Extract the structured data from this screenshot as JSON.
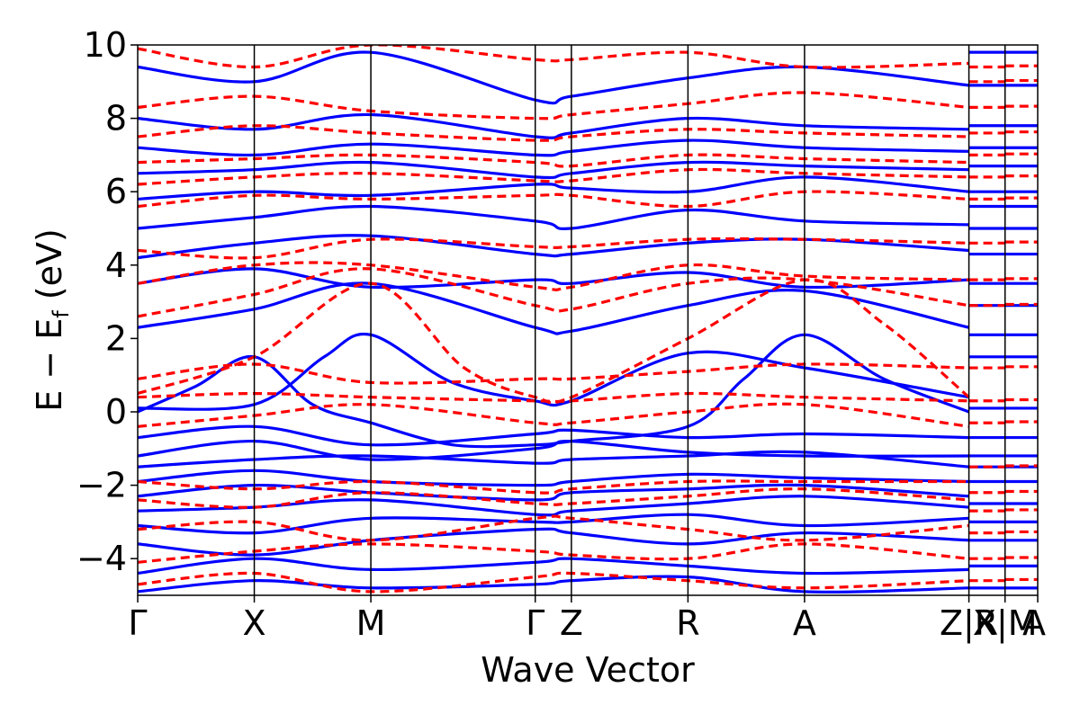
{
  "chart_data": {
    "type": "line",
    "title": "",
    "xlabel": "Wave Vector",
    "ylabel_main": "E − E",
    "ylabel_sub": "f",
    "ylabel_unit": " (eV)",
    "ylim": [
      -5,
      10
    ],
    "yticks": [
      -4,
      -2,
      0,
      2,
      4,
      6,
      8,
      10
    ],
    "ytick_labels": [
      "−4",
      "−2",
      "0",
      "2",
      "4",
      "6",
      "8",
      "10"
    ],
    "xlim": [
      0,
      7.72
    ],
    "kpoints": [
      {
        "label": "Γ",
        "x": 0
      },
      {
        "label": "X",
        "x": 1.0
      },
      {
        "label": "M",
        "x": 2.0
      },
      {
        "label": "Γ",
        "x": 3.41
      },
      {
        "label": "Z",
        "x": 3.72
      },
      {
        "label": "R",
        "x": 4.72
      },
      {
        "label": "A",
        "x": 5.72
      },
      {
        "label": "Z|R",
        "x": 7.13
      },
      {
        "label": "X|M",
        "x": 7.44
      },
      {
        "label": "A",
        "x": 7.72
      }
    ],
    "grid": false,
    "series": [
      {
        "style": "solid",
        "color": "#0000ff",
        "bands": [
          {
            "x": [
              0,
              1,
              2,
              3.41,
              3.72,
              4.72,
              5.72,
              7.13
            ],
            "y": [
              -4.9,
              -4.6,
              -4.8,
              -4.7,
              -4.6,
              -4.5,
              -4.9,
              -4.8
            ]
          },
          {
            "x": [
              0,
              1,
              2,
              3.41,
              3.72,
              4.72,
              5.72,
              7.13
            ],
            "y": [
              -4.4,
              -4.0,
              -4.3,
              -4.1,
              -4.0,
              -4.2,
              -4.4,
              -4.3
            ]
          },
          {
            "x": [
              0,
              1,
              2,
              3.41,
              3.72,
              4.72,
              5.72,
              7.13
            ],
            "y": [
              -3.6,
              -3.9,
              -3.5,
              -3.2,
              -3.3,
              -3.6,
              -3.3,
              -3.5
            ]
          },
          {
            "x": [
              0,
              1,
              2,
              3.41,
              3.72,
              4.72,
              5.72,
              7.13
            ],
            "y": [
              -3.1,
              -3.3,
              -2.9,
              -3.0,
              -3.0,
              -2.8,
              -3.1,
              -2.9
            ]
          },
          {
            "x": [
              0,
              1,
              2,
              3.41,
              3.72,
              4.72,
              5.72,
              7.13
            ],
            "y": [
              -2.7,
              -2.6,
              -2.4,
              -2.8,
              -2.7,
              -2.5,
              -2.3,
              -2.6
            ]
          },
          {
            "x": [
              0,
              1,
              2,
              3.41,
              3.72,
              4.72,
              5.72,
              7.13
            ],
            "y": [
              -2.3,
              -2.0,
              -2.2,
              -2.4,
              -2.2,
              -2.1,
              -2.0,
              -2.3
            ]
          },
          {
            "x": [
              0,
              1,
              2,
              3.41,
              3.72,
              4.72,
              5.72,
              7.13
            ],
            "y": [
              -1.9,
              -1.6,
              -1.9,
              -2.0,
              -1.9,
              -1.7,
              -1.8,
              -1.9
            ]
          },
          {
            "x": [
              0,
              1,
              2,
              3.41,
              3.72,
              4.72,
              5.72,
              7.13
            ],
            "y": [
              -1.5,
              -1.3,
              -1.2,
              -1.4,
              -1.3,
              -1.2,
              -1.1,
              -1.5
            ]
          },
          {
            "x": [
              0,
              1,
              2,
              3.41,
              3.72,
              4.72,
              5.72,
              7.13
            ],
            "y": [
              -1.2,
              -0.8,
              -1.3,
              -1.0,
              -0.8,
              -1.1,
              -1.2,
              -1.2
            ]
          },
          {
            "x": [
              0,
              1,
              2,
              3.41,
              3.72,
              4.72,
              5.72,
              7.13
            ],
            "y": [
              -0.7,
              -0.4,
              -0.9,
              -0.6,
              -0.5,
              -0.7,
              -0.6,
              -0.7
            ]
          },
          {
            "x": [
              0,
              0.5,
              1,
              1.5,
              2,
              2.7,
              3.41,
              3.72,
              4.72,
              5.2,
              5.72,
              6.4,
              7.13
            ],
            "y": [
              0.0,
              0.7,
              1.5,
              0.2,
              -0.3,
              -0.9,
              -0.9,
              -0.8,
              -0.4,
              0.9,
              2.1,
              0.9,
              0.0
            ]
          },
          {
            "x": [
              0,
              1,
              1.6,
              2,
              2.7,
              3.41,
              3.72,
              4.72,
              5.72,
              7.13
            ],
            "y": [
              0.1,
              0.2,
              1.5,
              2.1,
              0.8,
              0.3,
              0.3,
              1.6,
              1.2,
              0.4
            ]
          },
          {
            "x": [
              0,
              1,
              2,
              3.41,
              3.72,
              4.72,
              5.72,
              7.13
            ],
            "y": [
              2.3,
              2.8,
              3.5,
              2.3,
              2.2,
              2.9,
              3.3,
              2.3
            ]
          },
          {
            "x": [
              0,
              1,
              2,
              3.41,
              3.72,
              4.72,
              5.72,
              7.13
            ],
            "y": [
              3.5,
              3.9,
              3.4,
              3.6,
              3.5,
              3.8,
              3.4,
              3.6
            ]
          },
          {
            "x": [
              0,
              1,
              2,
              3.41,
              3.72,
              4.72,
              5.72,
              7.13
            ],
            "y": [
              4.2,
              4.6,
              4.8,
              4.3,
              4.3,
              4.6,
              4.7,
              4.4
            ]
          },
          {
            "x": [
              0,
              1,
              2,
              3.41,
              3.72,
              4.72,
              5.72,
              7.13
            ],
            "y": [
              5.0,
              5.3,
              5.6,
              5.2,
              5.0,
              5.5,
              5.2,
              5.1
            ]
          },
          {
            "x": [
              0,
              1,
              2,
              3.41,
              3.72,
              4.72,
              5.72,
              7.13
            ],
            "y": [
              5.8,
              6.0,
              5.9,
              6.2,
              6.1,
              6.0,
              6.4,
              6.0
            ]
          },
          {
            "x": [
              0,
              1,
              2,
              3.41,
              3.72,
              4.72,
              5.72,
              7.13
            ],
            "y": [
              6.5,
              6.6,
              6.8,
              6.4,
              6.5,
              6.8,
              6.7,
              6.6
            ]
          },
          {
            "x": [
              0,
              1,
              2,
              3.41,
              3.72,
              4.72,
              5.72,
              7.13
            ],
            "y": [
              7.2,
              7.0,
              7.3,
              7.0,
              7.1,
              7.4,
              7.2,
              7.1
            ]
          },
          {
            "x": [
              0,
              1,
              2,
              3.41,
              3.72,
              4.72,
              5.72,
              7.13
            ],
            "y": [
              8.0,
              7.7,
              8.1,
              7.5,
              7.6,
              8.0,
              7.8,
              7.7
            ]
          },
          {
            "x": [
              0,
              1,
              2,
              3.41,
              3.72,
              4.72,
              5.72,
              7.13
            ],
            "y": [
              9.4,
              9.0,
              9.8,
              8.5,
              8.6,
              9.1,
              9.4,
              8.9
            ]
          }
        ]
      },
      {
        "style": "dashed",
        "color": "#ff0000",
        "bands": [
          {
            "x": [
              0,
              1,
              2,
              3.41,
              3.72,
              4.72,
              5.72,
              7.13
            ],
            "y": [
              -4.7,
              -4.4,
              -4.9,
              -4.5,
              -4.4,
              -4.6,
              -4.8,
              -4.6
            ]
          },
          {
            "x": [
              0,
              1,
              2,
              3.41,
              3.72,
              4.72,
              5.72,
              7.13
            ],
            "y": [
              -4.1,
              -3.8,
              -3.6,
              -3.8,
              -3.9,
              -4.0,
              -3.6,
              -4.0
            ]
          },
          {
            "x": [
              0,
              1,
              2,
              3.41,
              3.72,
              4.72,
              5.72,
              7.13
            ],
            "y": [
              -3.2,
              -3.0,
              -3.5,
              -2.9,
              -2.9,
              -3.2,
              -3.5,
              -3.1
            ]
          },
          {
            "x": [
              0,
              1,
              2,
              3.41,
              3.72,
              4.72,
              5.72,
              7.13
            ],
            "y": [
              -2.4,
              -2.6,
              -2.2,
              -2.5,
              -2.5,
              -2.3,
              -2.1,
              -2.4
            ]
          },
          {
            "x": [
              0,
              1,
              2,
              3.41,
              3.72,
              4.72,
              5.72,
              7.13
            ],
            "y": [
              -1.9,
              -2.1,
              -1.9,
              -2.2,
              -2.1,
              -1.9,
              -1.9,
              -1.9
            ]
          },
          {
            "x": [
              0,
              1,
              2,
              3.41,
              3.72,
              4.72,
              5.72,
              7.13
            ],
            "y": [
              -0.4,
              -0.1,
              0.2,
              -0.3,
              -0.3,
              0.0,
              0.2,
              -0.4
            ]
          },
          {
            "x": [
              0,
              1,
              2,
              3.41,
              3.72,
              4.72,
              5.72,
              7.13
            ],
            "y": [
              0.4,
              0.5,
              0.4,
              0.3,
              0.3,
              0.5,
              0.4,
              0.3
            ]
          },
          {
            "x": [
              0,
              1,
              2,
              3.41,
              3.72,
              4.72,
              5.72,
              7.13
            ],
            "y": [
              0.9,
              1.3,
              0.8,
              0.9,
              0.9,
              1.1,
              1.3,
              1.2
            ]
          },
          {
            "x": [
              0,
              1,
              2,
              2.8,
              3.41,
              3.72,
              4.72,
              5.72,
              6.4,
              7.13
            ],
            "y": [
              0.5,
              1.5,
              3.5,
              1.2,
              0.4,
              0.4,
              2.0,
              3.6,
              2.4,
              0.4
            ]
          },
          {
            "x": [
              0,
              1,
              2,
              3.41,
              3.72,
              4.72,
              5.72,
              7.13
            ],
            "y": [
              2.6,
              3.2,
              3.9,
              2.9,
              2.8,
              3.5,
              3.6,
              2.9
            ]
          },
          {
            "x": [
              0,
              1,
              2,
              3.41,
              3.72,
              4.72,
              5.72,
              7.13
            ],
            "y": [
              3.5,
              4.0,
              4.0,
              3.4,
              3.4,
              4.0,
              3.7,
              3.6
            ]
          },
          {
            "x": [
              0,
              1,
              2,
              3.41,
              3.72,
              4.72,
              5.72,
              7.13
            ],
            "y": [
              4.4,
              4.2,
              4.7,
              4.5,
              4.5,
              4.7,
              4.7,
              4.6
            ]
          },
          {
            "x": [
              0,
              1,
              2,
              3.41,
              3.72,
              4.72,
              5.72,
              7.13
            ],
            "y": [
              5.6,
              5.9,
              5.8,
              5.9,
              5.9,
              5.6,
              6.0,
              5.8
            ]
          },
          {
            "x": [
              0,
              1,
              2,
              3.41,
              3.72,
              4.72,
              5.72,
              7.13
            ],
            "y": [
              6.2,
              6.4,
              6.5,
              6.3,
              6.3,
              6.6,
              6.5,
              6.4
            ]
          },
          {
            "x": [
              0,
              1,
              2,
              3.41,
              3.72,
              4.72,
              5.72,
              7.13
            ],
            "y": [
              6.8,
              6.9,
              7.0,
              6.8,
              6.7,
              7.0,
              6.9,
              6.8
            ]
          },
          {
            "x": [
              0,
              1,
              2,
              3.41,
              3.72,
              4.72,
              5.72,
              7.13
            ],
            "y": [
              7.5,
              7.8,
              7.6,
              7.4,
              7.5,
              7.7,
              7.6,
              7.5
            ]
          },
          {
            "x": [
              0,
              1,
              2,
              3.41,
              3.72,
              4.72,
              5.72,
              7.13
            ],
            "y": [
              8.3,
              8.6,
              8.2,
              8.0,
              8.1,
              8.4,
              8.7,
              8.3
            ]
          },
          {
            "x": [
              0,
              1,
              2,
              3.41,
              3.72,
              4.72,
              5.72,
              7.13
            ],
            "y": [
              9.9,
              9.4,
              10.0,
              9.6,
              9.6,
              9.8,
              9.4,
              9.5
            ]
          }
        ]
      }
    ],
    "segment_levels": {
      "solid": [
        -4.8,
        -4.2,
        -3.5,
        -3.0,
        -2.5,
        -1.9,
        -1.5,
        -1.2,
        -0.7,
        0.1,
        1.5,
        2.1,
        2.9,
        3.5,
        4.3,
        5.0,
        5.6,
        6.0,
        6.7,
        7.2,
        7.8,
        8.9,
        9.8
      ],
      "dashed": [
        -4.6,
        -4.0,
        -3.3,
        -2.7,
        -2.2,
        -1.5,
        -0.3,
        0.3,
        1.2,
        2.9,
        3.6,
        4.6,
        5.8,
        6.4,
        7.0,
        7.6,
        8.3,
        9.0,
        9.4
      ]
    }
  }
}
